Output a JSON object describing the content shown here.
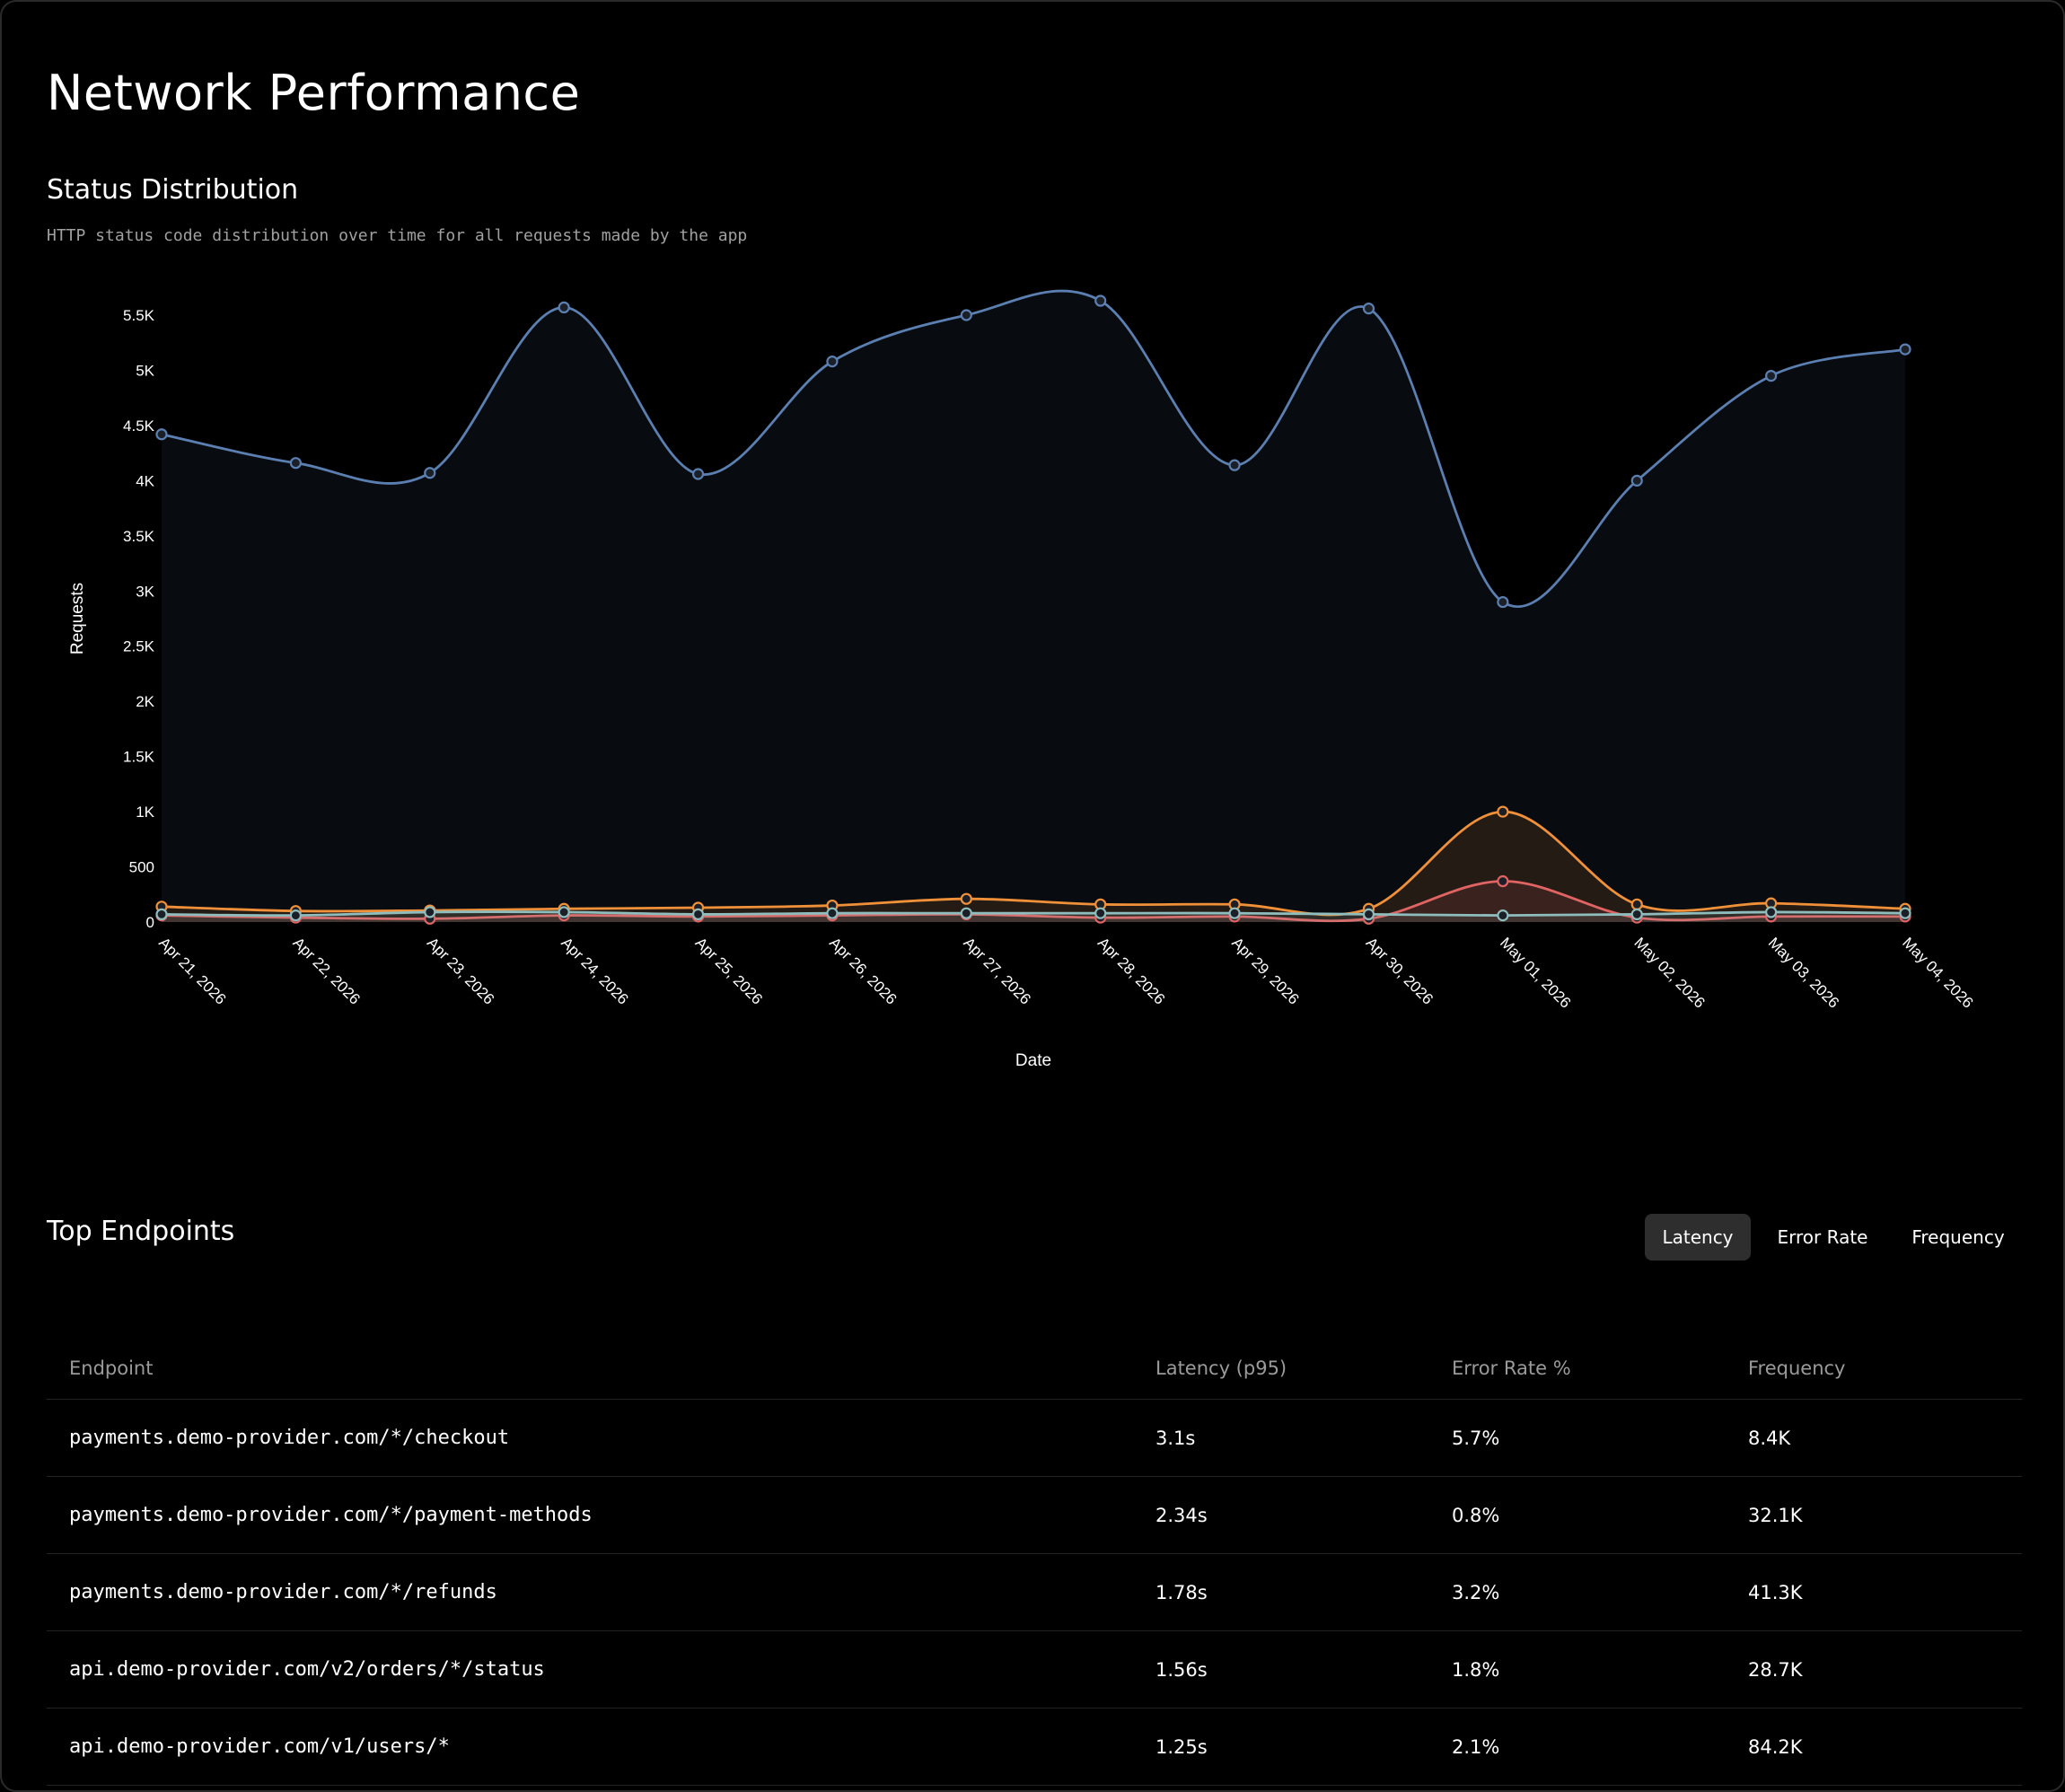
{
  "page": {
    "title": "Network Performance"
  },
  "status_section": {
    "title": "Status Distribution",
    "subtitle": "HTTP status code distribution over time for all requests made by the app"
  },
  "chart_data": {
    "type": "area",
    "xlabel": "Date",
    "ylabel": "Requests",
    "ylim": [
      0,
      5500
    ],
    "yticks": [
      0,
      500,
      1000,
      1500,
      2000,
      2500,
      3000,
      3500,
      4000,
      4500,
      5000,
      5500
    ],
    "ytick_labels": [
      "0",
      "500",
      "1K",
      "1.5K",
      "2K",
      "2.5K",
      "3K",
      "3.5K",
      "4K",
      "4.5K",
      "5K",
      "5.5K"
    ],
    "categories": [
      "Apr 21, 2026",
      "Apr 22, 2026",
      "Apr 23, 2026",
      "Apr 24, 2026",
      "Apr 25, 2026",
      "Apr 26, 2026",
      "Apr 27, 2026",
      "Apr 28, 2026",
      "Apr 29, 2026",
      "Apr 30, 2026",
      "May 01, 2026",
      "May 02, 2026",
      "May 03, 2026",
      "May 04, 2026"
    ],
    "grid": false,
    "series": [
      {
        "color": "#5b7fb0",
        "values": [
          4420,
          4160,
          4070,
          5570,
          4060,
          5080,
          5500,
          5630,
          4140,
          5560,
          2900,
          4000,
          4950,
          5190
        ]
      },
      {
        "color": "#f0913a",
        "values": [
          140,
          100,
          105,
          120,
          130,
          150,
          210,
          160,
          160,
          120,
          1000,
          160,
          170,
          120
        ]
      },
      {
        "color": "#e06464",
        "values": [
          60,
          40,
          30,
          60,
          50,
          60,
          70,
          40,
          50,
          30,
          370,
          40,
          50,
          50
        ]
      },
      {
        "color": "#8fbcbc",
        "values": [
          70,
          60,
          90,
          90,
          70,
          80,
          80,
          80,
          80,
          70,
          60,
          70,
          90,
          80
        ]
      }
    ]
  },
  "endpoints": {
    "title": "Top Endpoints",
    "tabs": [
      "Latency",
      "Error Rate",
      "Frequency"
    ],
    "active_tab": "Latency",
    "columns": [
      "Endpoint",
      "Latency (p95)",
      "Error Rate %",
      "Frequency"
    ],
    "rows": [
      [
        "payments.demo-provider.com/*/checkout",
        "3.1s",
        "5.7%",
        "8.4K"
      ],
      [
        "payments.demo-provider.com/*/payment-methods",
        "2.34s",
        "0.8%",
        "32.1K"
      ],
      [
        "payments.demo-provider.com/*/refunds",
        "1.78s",
        "3.2%",
        "41.3K"
      ],
      [
        "api.demo-provider.com/v2/orders/*/status",
        "1.56s",
        "1.8%",
        "28.7K"
      ],
      [
        "api.demo-provider.com/v1/users/*",
        "1.25s",
        "2.1%",
        "84.2K"
      ]
    ]
  }
}
